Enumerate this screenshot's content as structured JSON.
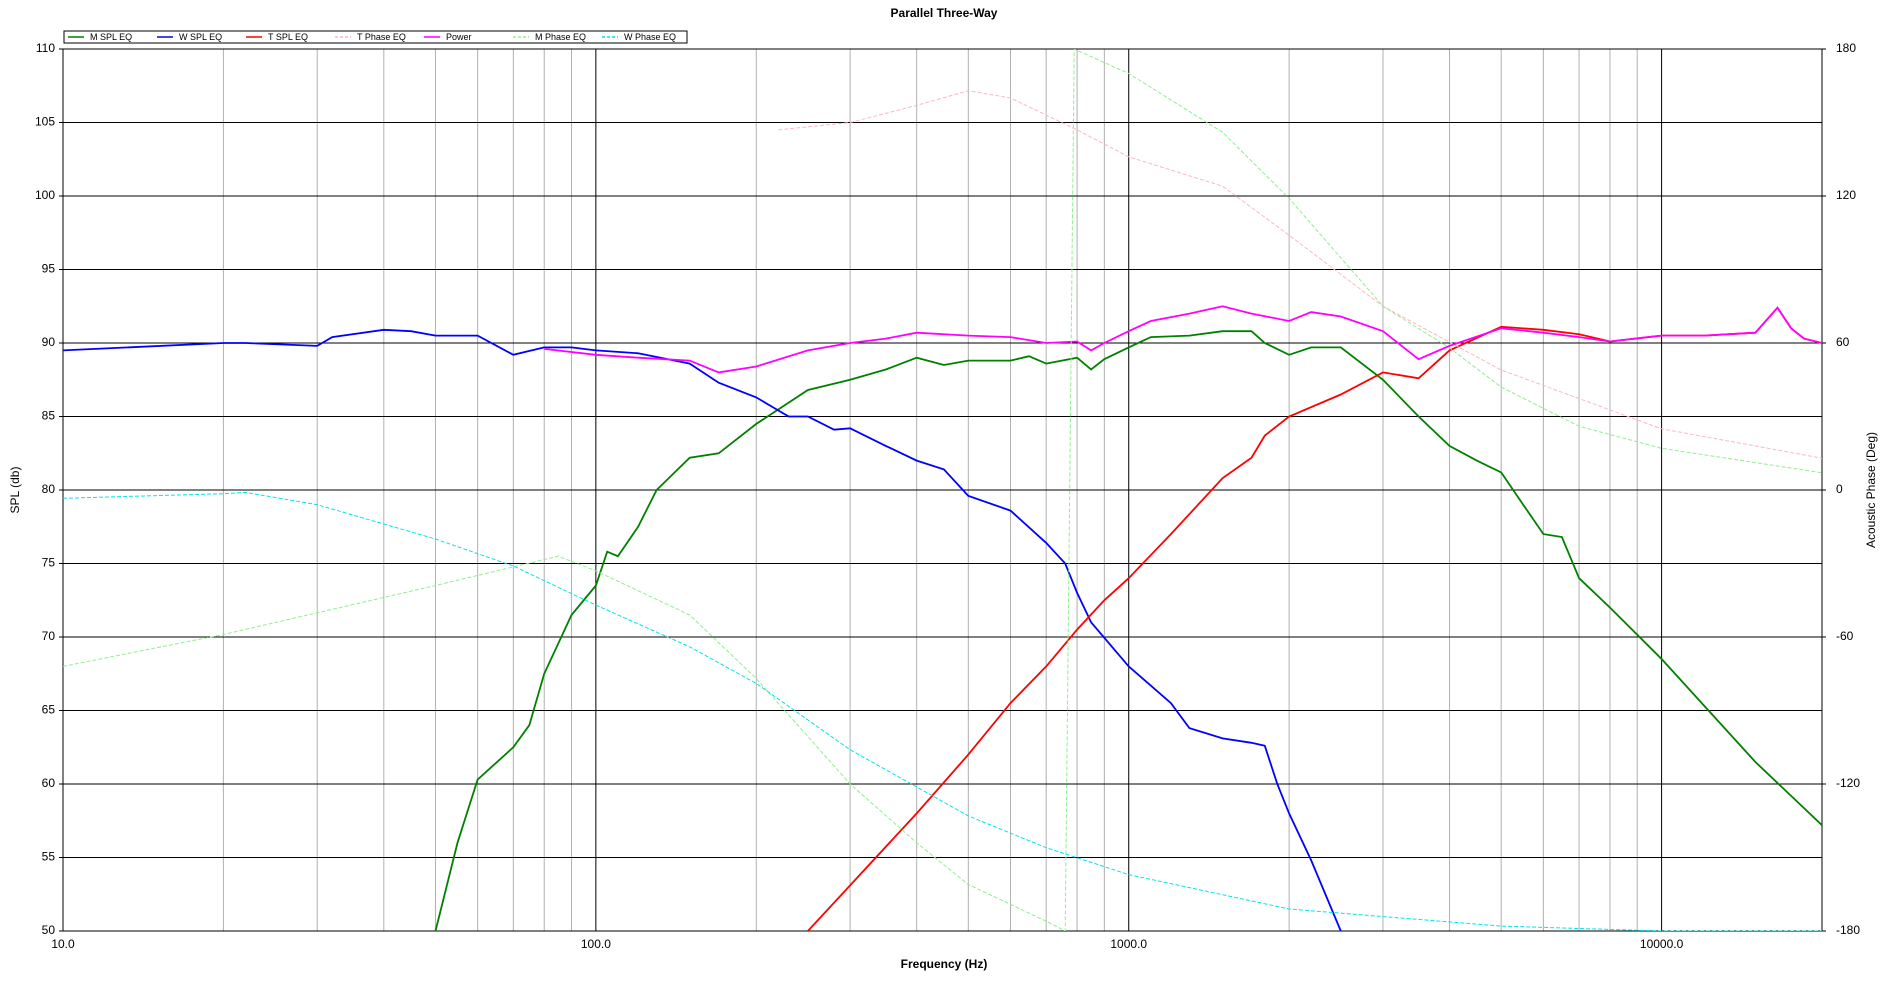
{
  "chart_data": {
    "type": "line",
    "title": "Parallel Three-Way",
    "x_label": "Frequency (Hz)",
    "y_label": "SPL (db)",
    "y2_label": "Acoustic Phase (Deg)",
    "xscale": "log",
    "xlim": [
      10,
      20000
    ],
    "xticks": [
      {
        "value": 10,
        "label": "10.0"
      },
      {
        "value": 100,
        "label": "100.0"
      },
      {
        "value": 1000,
        "label": "1000.0"
      },
      {
        "value": 10000,
        "label": "10000.0"
      }
    ],
    "xminorticks": [
      20,
      30,
      40,
      50,
      60,
      70,
      80,
      90,
      200,
      300,
      400,
      500,
      600,
      700,
      800,
      900,
      2000,
      3000,
      4000,
      5000,
      6000,
      7000,
      8000,
      9000
    ],
    "ylim": [
      50,
      110
    ],
    "yticks": [
      50,
      55,
      60,
      65,
      70,
      75,
      80,
      85,
      90,
      95,
      100,
      105,
      110
    ],
    "y2lim": [
      -180,
      180
    ],
    "y2ticks": [
      -180,
      -120,
      -60,
      0,
      60,
      120,
      180
    ],
    "grid": true,
    "legend": "top-left",
    "series": [
      {
        "name": "M SPL EQ",
        "color": "#008000",
        "style": "solid",
        "x": [
          50,
          55,
          60,
          70,
          75,
          80,
          90,
          100,
          105,
          110,
          120,
          130,
          150,
          170,
          200,
          250,
          300,
          350,
          400,
          450,
          500,
          600,
          650,
          700,
          800,
          850,
          900,
          1000,
          1100,
          1300,
          1500,
          1700,
          1800,
          2000,
          2200,
          2500,
          3000,
          3500,
          4000,
          4500,
          5000,
          5500,
          6000,
          6500,
          7000,
          8000,
          10000,
          15000,
          20000
        ],
        "values": [
          50,
          56,
          60.3,
          62.5,
          64,
          67.5,
          71.5,
          73.5,
          75.8,
          75.5,
          77.5,
          80,
          82.2,
          82.5,
          84.5,
          86.8,
          87.5,
          88.2,
          89,
          88.5,
          88.8,
          88.8,
          89.1,
          88.6,
          89,
          88.2,
          88.9,
          89.7,
          90.4,
          90.5,
          90.8,
          90.8,
          90,
          89.2,
          89.7,
          89.7,
          87.5,
          85,
          83,
          82,
          81.2,
          79,
          77,
          76.8,
          74,
          72,
          68.5,
          61.5,
          57.2
        ]
      },
      {
        "name": "W SPL EQ",
        "color": "#0000ff",
        "style": "solid",
        "x": [
          10,
          20,
          22,
          30,
          32,
          40,
          45,
          50,
          60,
          70,
          80,
          90,
          100,
          120,
          150,
          170,
          200,
          230,
          250,
          280,
          300,
          350,
          400,
          450,
          500,
          600,
          700,
          760,
          800,
          850,
          1000,
          1200,
          1300,
          1500,
          1700,
          1800,
          1900,
          2000,
          2200,
          2500
        ],
        "values": [
          89.5,
          90,
          90,
          89.8,
          90.4,
          90.9,
          90.8,
          90.5,
          90.5,
          89.2,
          89.7,
          89.7,
          89.5,
          89.3,
          88.6,
          87.3,
          86.3,
          85,
          85,
          84.1,
          84.2,
          83,
          82,
          81.4,
          79.6,
          78.6,
          76.4,
          75,
          73,
          71,
          68,
          65.5,
          63.8,
          63.1,
          62.8,
          62.6,
          60,
          58,
          54.8,
          50
        ]
      },
      {
        "name": "T SPL EQ",
        "color": "#ff0000",
        "style": "solid",
        "x": [
          250,
          400,
          500,
          600,
          700,
          800,
          900,
          1000,
          1200,
          1500,
          1700,
          1800,
          2000,
          2500,
          3000,
          3500,
          4000,
          5000,
          6000,
          7000,
          8000,
          10000,
          12000,
          15000,
          16500,
          17500,
          18500,
          20000
        ],
        "values": [
          50,
          58,
          62,
          65.5,
          68,
          70.5,
          72.5,
          74,
          77,
          80.8,
          82.2,
          83.7,
          85,
          86.5,
          88,
          87.6,
          89.5,
          91.1,
          90.9,
          90.6,
          90.1,
          90.5,
          90.5,
          90.7,
          92.4,
          91,
          90.3,
          90
        ]
      },
      {
        "name": "T Phase EQ",
        "color": "#ffb6c1",
        "style": "dashed",
        "x": [
          220,
          300,
          400,
          500,
          600,
          800,
          1000,
          1500,
          2000,
          3000,
          5000,
          10000,
          20000
        ],
        "values": [
          147,
          150,
          157,
          163,
          160,
          147,
          136,
          124,
          104,
          75,
          49,
          25,
          13
        ],
        "axis": "y2"
      },
      {
        "name": "Power",
        "color": "#ff00ff",
        "style": "solid",
        "x": [
          80,
          100,
          120,
          150,
          170,
          200,
          250,
          300,
          350,
          400,
          500,
          600,
          700,
          800,
          850,
          900,
          1000,
          1100,
          1300,
          1500,
          1700,
          2000,
          2200,
          2500,
          3000,
          3500,
          4000,
          5000,
          6000,
          7000,
          8000,
          10000,
          12000,
          15000,
          16500,
          17500,
          18500,
          20000
        ],
        "values": [
          89.6,
          89.2,
          89,
          88.8,
          88,
          88.4,
          89.5,
          90,
          90.3,
          90.7,
          90.5,
          90.4,
          90,
          90.1,
          89.5,
          90,
          90.8,
          91.5,
          92,
          92.5,
          92,
          91.5,
          92.1,
          91.8,
          90.8,
          88.9,
          89.8,
          91,
          90.7,
          90.4,
          90.1,
          90.5,
          90.5,
          90.7,
          92.4,
          91,
          90.3,
          90
        ]
      },
      {
        "name": "M Phase EQ",
        "color": "#90ee90",
        "style": "dashed",
        "x": [
          10,
          20,
          50,
          85,
          100,
          150,
          200,
          300,
          400,
          500,
          700,
          760,
          790,
          1000,
          1500,
          2000,
          3000,
          4000,
          5000,
          7000,
          10000,
          20000
        ],
        "values": [
          -72,
          -59,
          -39,
          -27,
          -33,
          -51,
          -77,
          -120,
          -144,
          -161,
          -176,
          -180,
          180,
          170,
          146,
          119,
          75,
          58,
          42,
          26,
          17,
          7
        ],
        "axis": "y2"
      },
      {
        "name": "W Phase EQ",
        "color": "#00e5ee",
        "style": "dashed",
        "x": [
          10,
          20,
          22,
          30,
          50,
          70,
          100,
          150,
          200,
          300,
          500,
          700,
          1000,
          2000,
          5000,
          10000,
          20000
        ],
        "values": [
          -3.4,
          -1.5,
          -1,
          -6,
          -20,
          -31,
          -47,
          -64,
          -79,
          -106,
          -133,
          -146,
          -157,
          -171,
          -178,
          -180,
          -180
        ],
        "axis": "y2"
      }
    ]
  }
}
